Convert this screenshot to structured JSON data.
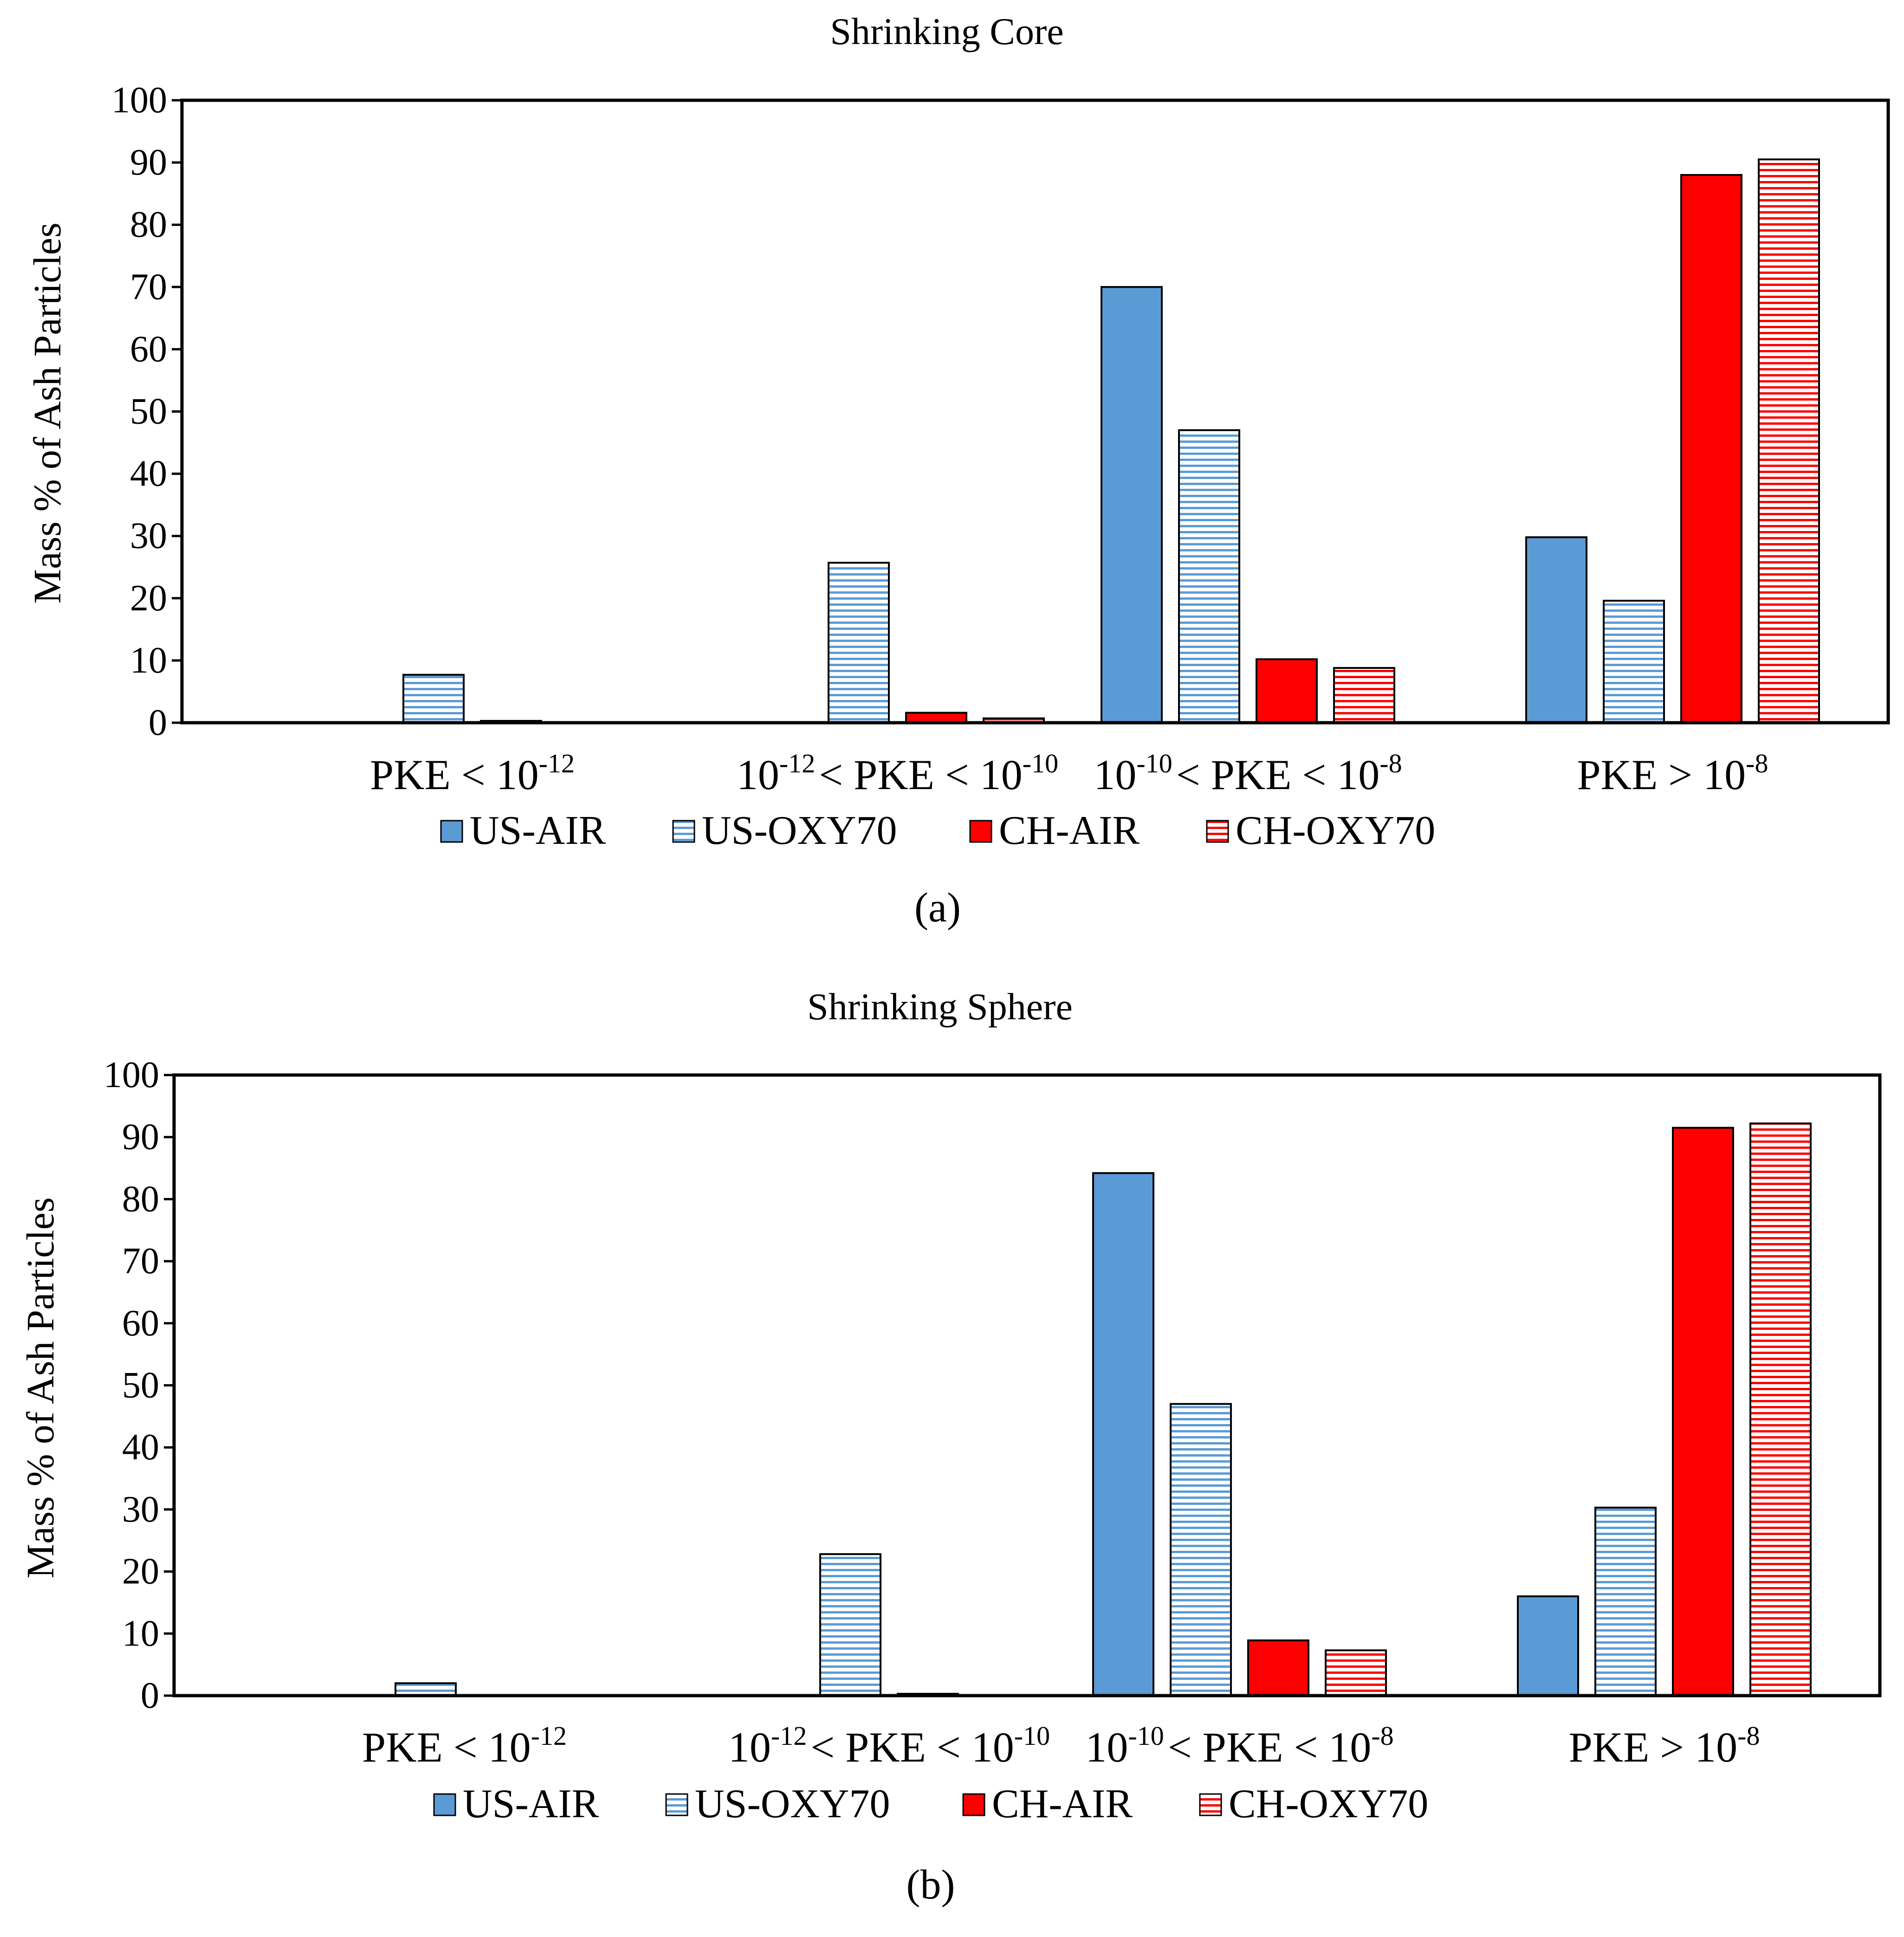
{
  "chart_data": [
    {
      "type": "bar",
      "title": "Shrinking Core",
      "ylabel": "Mass % of Ash Particles",
      "xlabel": "",
      "ylim": [
        0,
        100
      ],
      "yticks": [
        0,
        10,
        20,
        30,
        40,
        50,
        60,
        70,
        80,
        90,
        100
      ],
      "categories": [
        {
          "base": "PKE < 10",
          "sup": "-12"
        },
        {
          "pre": "10",
          "presup": "-12",
          "base": "< PKE < 10",
          "sup": "-10"
        },
        {
          "pre": "10",
          "presup": "-10",
          "base": "< PKE < 10",
          "sup": "-8"
        },
        {
          "base": "PKE > 10",
          "sup": "-8"
        }
      ],
      "series": [
        {
          "name": "US-AIR",
          "color": "#5b9bd5",
          "pattern": "solid",
          "values": [
            0,
            0,
            70,
            29.8
          ]
        },
        {
          "name": "US-OXY70",
          "color": "#5b9bd5",
          "pattern": "hlines",
          "values": [
            7.7,
            25.7,
            47,
            19.6
          ]
        },
        {
          "name": "CH-AIR",
          "color": "#ff0000",
          "pattern": "solid",
          "values": [
            0.3,
            1.6,
            10.2,
            88
          ]
        },
        {
          "name": "CH-OXY70",
          "color": "#ff0000",
          "pattern": "hlines",
          "values": [
            0,
            0.7,
            8.8,
            90.5
          ]
        }
      ],
      "legend": "bottom",
      "caption": "(a)"
    },
    {
      "type": "bar",
      "title": "Shrinking Sphere",
      "ylabel": "Mass % of Ash Particles",
      "xlabel": "",
      "ylim": [
        0,
        100
      ],
      "yticks": [
        0,
        10,
        20,
        30,
        40,
        50,
        60,
        70,
        80,
        90,
        100
      ],
      "categories": [
        {
          "base": "PKE < 10",
          "sup": "-12"
        },
        {
          "pre": "10",
          "presup": "-12",
          "base": "< PKE < 10",
          "sup": "-10"
        },
        {
          "pre": "10",
          "presup": "-10",
          "base": "< PKE < 10",
          "sup": "-8"
        },
        {
          "base": "PKE > 10",
          "sup": "-8"
        }
      ],
      "series": [
        {
          "name": "US-AIR",
          "color": "#5b9bd5",
          "pattern": "solid",
          "values": [
            0,
            0,
            84.2,
            16
          ]
        },
        {
          "name": "US-OXY70",
          "color": "#5b9bd5",
          "pattern": "hlines",
          "values": [
            2,
            22.8,
            47,
            30.3
          ]
        },
        {
          "name": "CH-AIR",
          "color": "#ff0000",
          "pattern": "solid",
          "values": [
            0,
            0.3,
            8.9,
            91.5
          ]
        },
        {
          "name": "CH-OXY70",
          "color": "#ff0000",
          "pattern": "hlines",
          "values": [
            0,
            0,
            7.3,
            92.2
          ]
        }
      ],
      "legend": "bottom",
      "caption": "(b)"
    }
  ]
}
